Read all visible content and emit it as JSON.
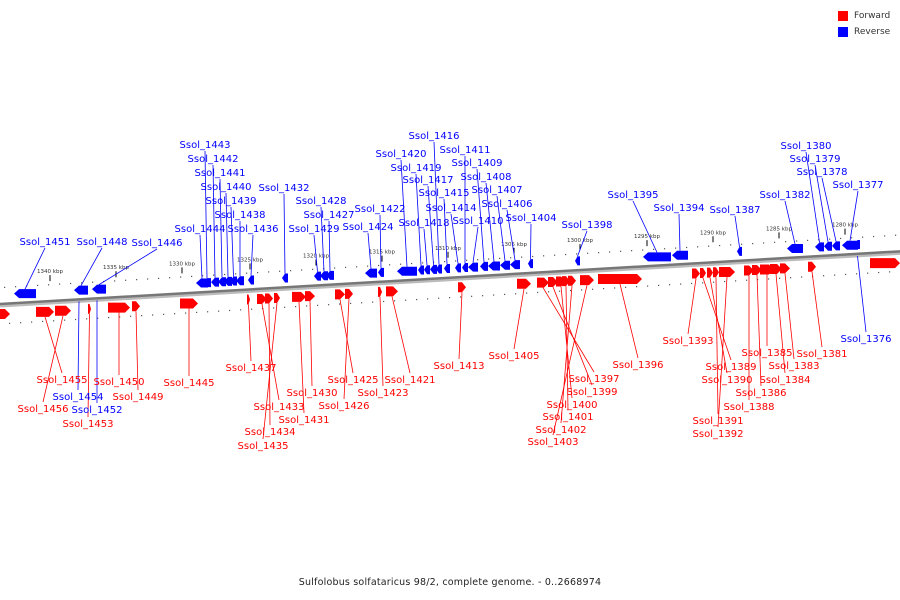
{
  "legend": {
    "forward_label": "Forward",
    "reverse_label": "Reverse",
    "forward_color": "#ff0000",
    "reverse_color": "#0000ff"
  },
  "caption": "Sulfolobus solfataricus 98/2, complete genome. - 0..2668974",
  "ruler_ticks": [
    "1340 kbp",
    "1335 kbp",
    "1330 kbp",
    "1325 kbp",
    "1320 kbp",
    "1315 kbp",
    "1310 kbp",
    "1305 kbp",
    "1300 kbp",
    "1295 kbp",
    "1290 kbp",
    "1285 kbp",
    "1280 kbp"
  ],
  "reverse_genes": [
    "Ssol_1451",
    "Ssol_1448",
    "Ssol_1446",
    "Ssol_1444",
    "Ssol_1443",
    "Ssol_1442",
    "Ssol_1441",
    "Ssol_1440",
    "Ssol_1439",
    "Ssol_1438",
    "Ssol_1436",
    "Ssol_1432",
    "Ssol_1429",
    "Ssol_1428",
    "Ssol_1427",
    "Ssol_1424",
    "Ssol_1422",
    "Ssol_1420",
    "Ssol_1419",
    "Ssol_1418",
    "Ssol_1417",
    "Ssol_1416",
    "Ssol_1415",
    "Ssol_1414",
    "Ssol_1411",
    "Ssol_1410",
    "Ssol_1409",
    "Ssol_1408",
    "Ssol_1407",
    "Ssol_1406",
    "Ssol_1404",
    "Ssol_1398",
    "Ssol_1395",
    "Ssol_1394",
    "Ssol_1387",
    "Ssol_1382",
    "Ssol_1380",
    "Ssol_1379",
    "Ssol_1378",
    "Ssol_1377",
    "Ssol_1376",
    "Ssol_1454",
    "Ssol_1452"
  ],
  "forward_genes": [
    "Ssol_1455",
    "Ssol_1456",
    "Ssol_1453",
    "Ssol_1450",
    "Ssol_1449",
    "Ssol_1445",
    "Ssol_1437",
    "Ssol_1433",
    "Ssol_1434",
    "Ssol_1435",
    "Ssol_1431",
    "Ssol_1430",
    "Ssol_1425",
    "Ssol_1426",
    "Ssol_1423",
    "Ssol_1421",
    "Ssol_1413",
    "Ssol_1405",
    "Ssol_1397",
    "Ssol_1399",
    "Ssol_1400",
    "Ssol_1401",
    "Ssol_1402",
    "Ssol_1403",
    "Ssol_1396",
    "Ssol_1393",
    "Ssol_1389",
    "Ssol_1390",
    "Ssol_1391",
    "Ssol_1392",
    "Ssol_1388",
    "Ssol_1386",
    "Ssol_1385",
    "Ssol_1384",
    "Ssol_1383",
    "Ssol_1381"
  ]
}
